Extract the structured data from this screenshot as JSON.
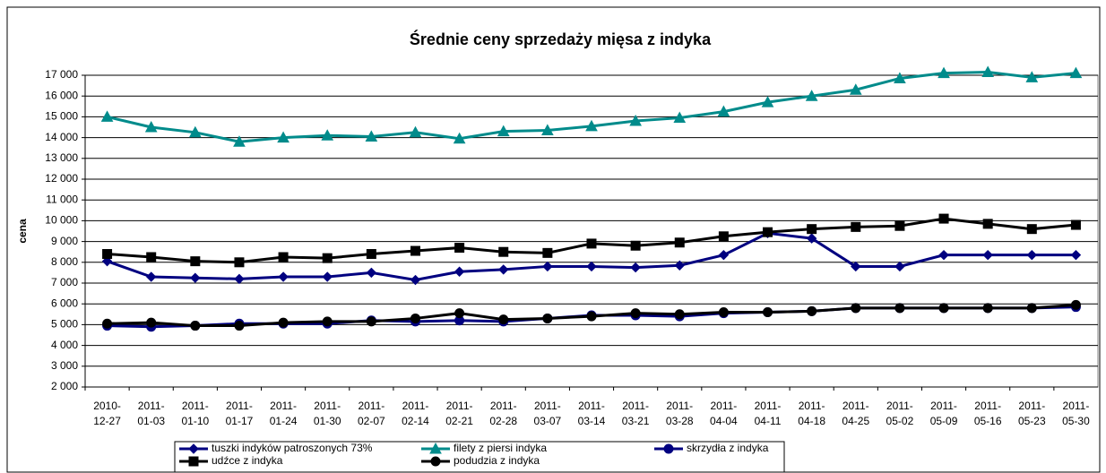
{
  "chart_data": {
    "type": "line",
    "title": "Średnie ceny sprzedaży mięsa z indyka",
    "y_label": "cena",
    "categories": [
      "2010-12-27",
      "2011-01-03",
      "2011-01-10",
      "2011-01-17",
      "2011-01-24",
      "2011-01-30",
      "2011-02-07",
      "2011-02-14",
      "2011-02-21",
      "2011-02-28",
      "2011-03-07",
      "2011-03-14",
      "2011-03-21",
      "2011-03-28",
      "2011-04-04",
      "2011-04-11",
      "2011-04-18",
      "2011-04-25",
      "2011-05-02",
      "2011-05-09",
      "2011-05-16",
      "2011-05-23",
      "2011-05-30"
    ],
    "series": [
      {
        "name": "tuszki indyków  patroszonych 73%",
        "color": "#000080",
        "marker": "diamond",
        "values": [
          8050,
          7300,
          7250,
          7200,
          7300,
          7300,
          7500,
          7150,
          7550,
          7650,
          7800,
          7800,
          7750,
          7850,
          8350,
          9400,
          9150,
          7800,
          7800,
          8350,
          8350,
          8350,
          8350
        ]
      },
      {
        "name": "filety z piersi indyka",
        "color": "#008b8b",
        "marker": "triangle",
        "values": [
          15000,
          14500,
          14250,
          13800,
          14000,
          14100,
          14050,
          14250,
          13950,
          14300,
          14350,
          14550,
          14800,
          14950,
          15250,
          15700,
          16000,
          16300,
          16850,
          17100,
          17150,
          16900,
          17100
        ]
      },
      {
        "name": "skrzydła z indyka",
        "color": "#000080",
        "marker": "circle",
        "values": [
          4950,
          4900,
          4950,
          5050,
          5050,
          5050,
          5200,
          5150,
          5200,
          5150,
          5300,
          5450,
          5450,
          5400,
          5550,
          5600,
          5650,
          5800,
          5800,
          5800,
          5800,
          5800,
          5850
        ]
      },
      {
        "name": "udźce z indyka",
        "color": "#000000",
        "marker": "square",
        "values": [
          8400,
          8250,
          8050,
          8000,
          8250,
          8200,
          8400,
          8550,
          8700,
          8500,
          8450,
          8900,
          8800,
          8950,
          9250,
          9450,
          9600,
          9700,
          9750,
          10100,
          9850,
          9600,
          9800
        ]
      },
      {
        "name": "podudzia z indyka",
        "color": "#000000",
        "marker": "circle",
        "values": [
          5050,
          5100,
          4950,
          4950,
          5100,
          5150,
          5150,
          5300,
          5550,
          5250,
          5300,
          5400,
          5550,
          5500,
          5600,
          5600,
          5650,
          5800,
          5800,
          5800,
          5800,
          5800,
          5950
        ]
      }
    ],
    "ylim": [
      2000,
      17000
    ],
    "yticks": [
      {
        "value": 2000,
        "label": "2 000"
      },
      {
        "value": 3000,
        "label": "3 000"
      },
      {
        "value": 4000,
        "label": "4 000"
      },
      {
        "value": 5000,
        "label": "5 000"
      },
      {
        "value": 6000,
        "label": "6 000"
      },
      {
        "value": 7000,
        "label": "7 000"
      },
      {
        "value": 8000,
        "label": "8 000"
      },
      {
        "value": 9000,
        "label": "9 000"
      },
      {
        "value": 10000,
        "label": "10 000"
      },
      {
        "value": 11000,
        "label": "11 000"
      },
      {
        "value": 12000,
        "label": "12 000"
      },
      {
        "value": 13000,
        "label": "13 000"
      },
      {
        "value": 14000,
        "label": "14 000"
      },
      {
        "value": 15000,
        "label": "15 000"
      },
      {
        "value": 16000,
        "label": "16 000"
      },
      {
        "value": 17000,
        "label": "17 000"
      }
    ],
    "grid": true,
    "legend": "bottom"
  }
}
